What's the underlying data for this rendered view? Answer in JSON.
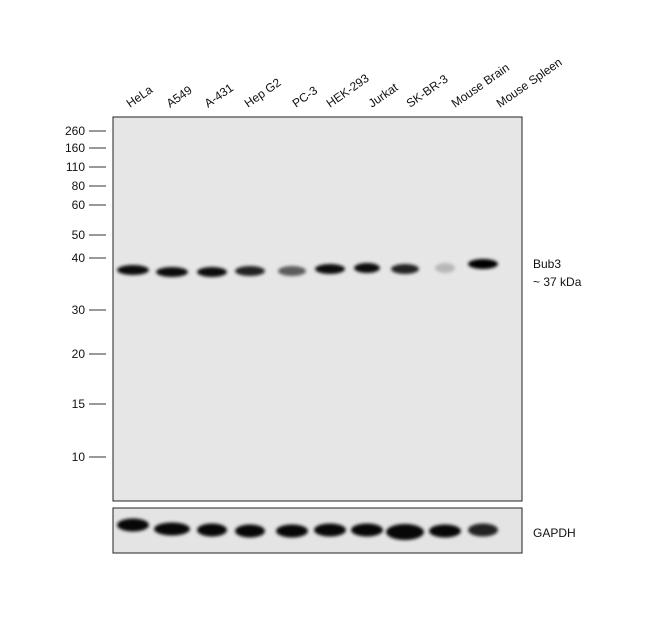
{
  "lanes": [
    "HeLa",
    "A549",
    "A-431",
    "Hep G2",
    "PC-3",
    "HEK-293",
    "Jurkat",
    "SK-BR-3",
    "Mouse Brain",
    "Mouse Spleen"
  ],
  "markers": [
    260,
    160,
    110,
    80,
    60,
    50,
    40,
    30,
    20,
    15,
    10
  ],
  "target": {
    "name": "Bub3",
    "size": "~ 37 kDa"
  },
  "loading_control": "GAPDH"
}
